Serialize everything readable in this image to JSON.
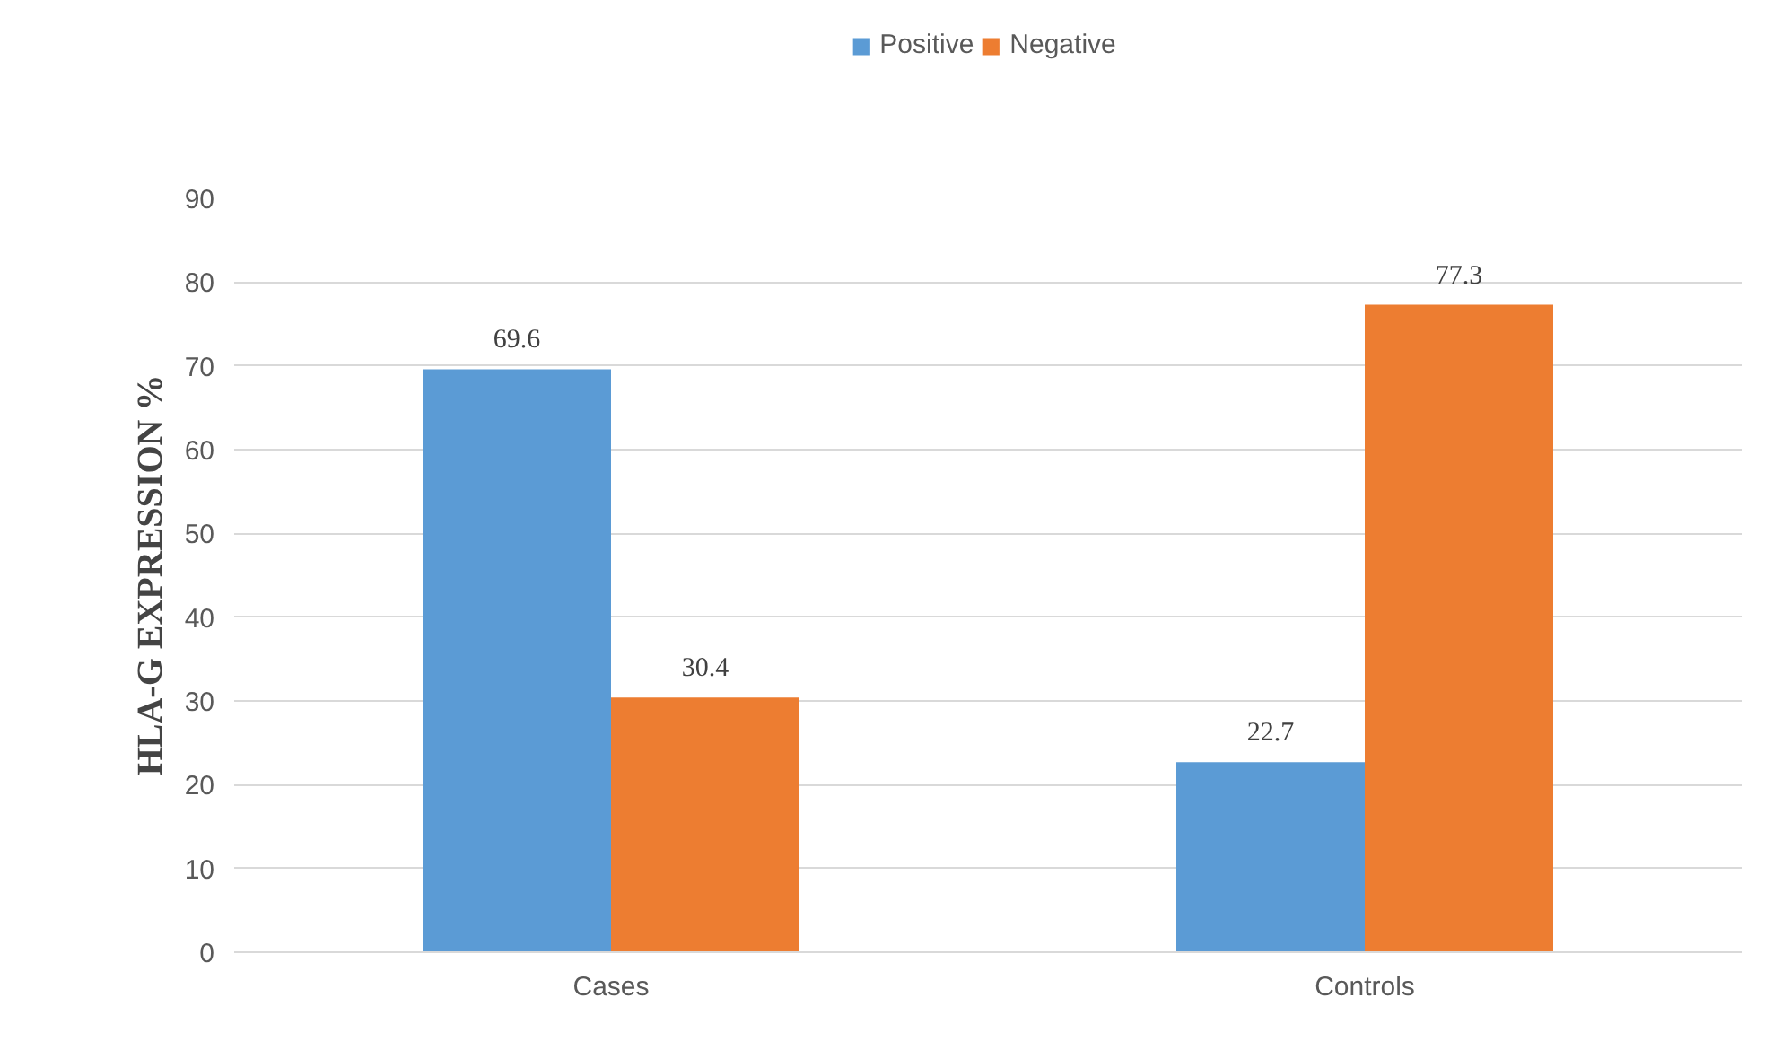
{
  "chart_data": {
    "type": "bar",
    "ylabel": "HLA-G EXPRESSION %",
    "categories": [
      "Cases",
      "Controls"
    ],
    "series": [
      {
        "name": "Positive",
        "color": "#5b9bd5",
        "values": [
          69.6,
          22.7
        ]
      },
      {
        "name": "Negative",
        "color": "#ed7d31",
        "values": [
          30.4,
          77.3
        ]
      }
    ],
    "ylim": [
      0,
      90
    ],
    "yticks": [
      0,
      10,
      20,
      30,
      40,
      50,
      60,
      70,
      80,
      90
    ],
    "grid": "y",
    "legend": "top",
    "data_labels": true
  }
}
